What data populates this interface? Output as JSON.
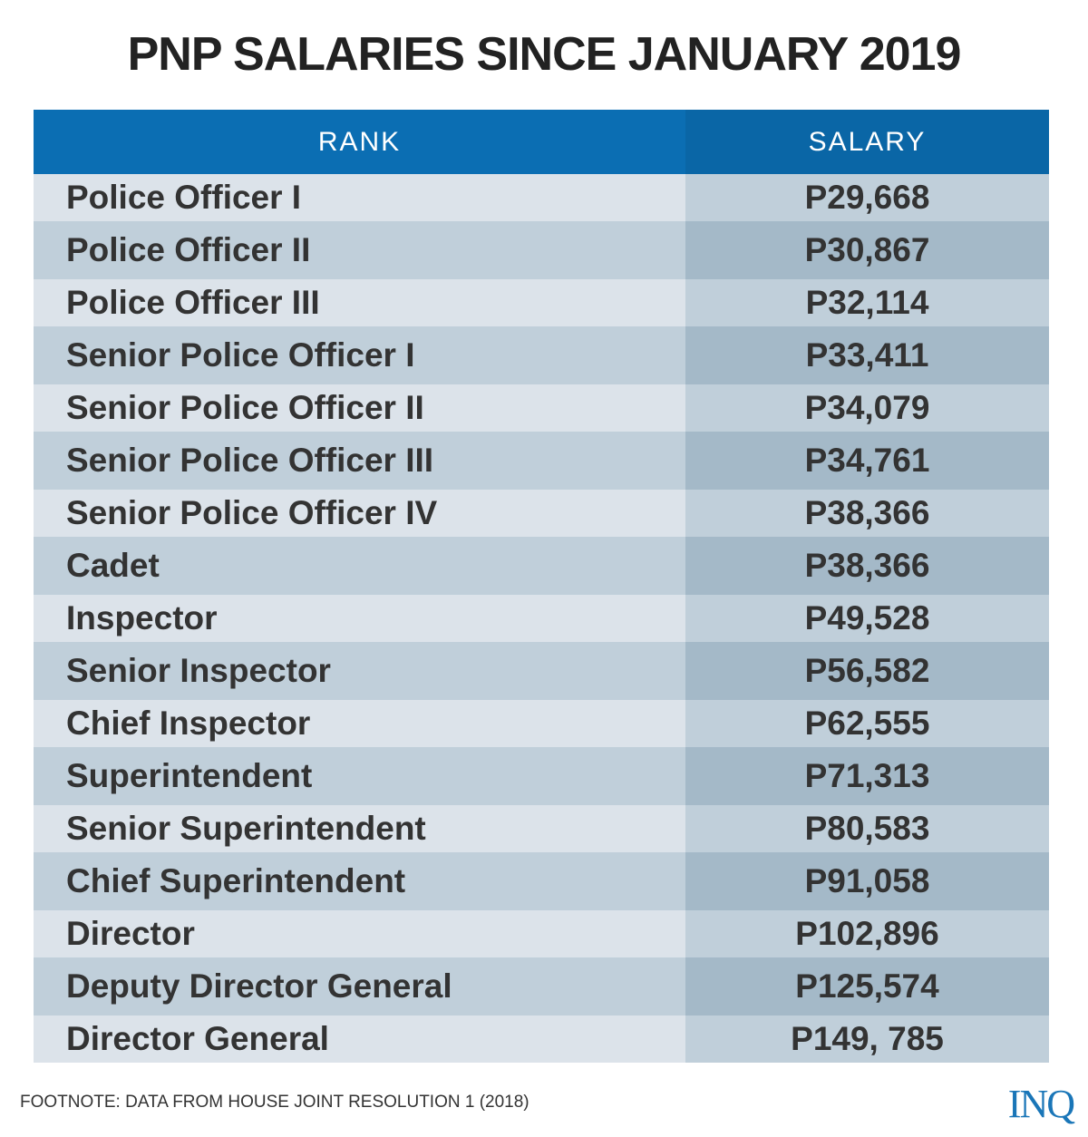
{
  "title": "PNP SALARIES SINCE JANUARY 2019",
  "chart_data": {
    "type": "table",
    "title": "PNP SALARIES SINCE JANUARY 2019",
    "columns": [
      "RANK",
      "SALARY"
    ],
    "rows": [
      [
        "Police Officer I",
        "P29,668"
      ],
      [
        "Police Officer II",
        "P30,867"
      ],
      [
        "Police Officer III",
        "P32,114"
      ],
      [
        "Senior Police Officer I",
        "P33,411"
      ],
      [
        "Senior Police Officer II",
        "P34,079"
      ],
      [
        "Senior Police Officer III",
        "P34,761"
      ],
      [
        "Senior Police Officer IV",
        "P38,366"
      ],
      [
        "Cadet",
        "P38,366"
      ],
      [
        "Inspector",
        "P49,528"
      ],
      [
        "Senior Inspector",
        "P56,582"
      ],
      [
        "Chief Inspector",
        "P62,555"
      ],
      [
        "Superintendent",
        "P71,313"
      ],
      [
        "Senior Superintendent",
        "P80,583"
      ],
      [
        "Chief Superintendent",
        "P91,058"
      ],
      [
        "Director",
        "P102,896"
      ],
      [
        "Deputy Director General",
        "P125,574"
      ],
      [
        "Director General",
        "P149, 785"
      ]
    ]
  },
  "footnote": "FOOTNOTE: DATA FROM HOUSE JOINT RESOLUTION 1 (2018)",
  "logo": "INQ",
  "colors": {
    "header": "#0b6eb3",
    "header_alt": "#0a66a6",
    "text": "#333333"
  }
}
